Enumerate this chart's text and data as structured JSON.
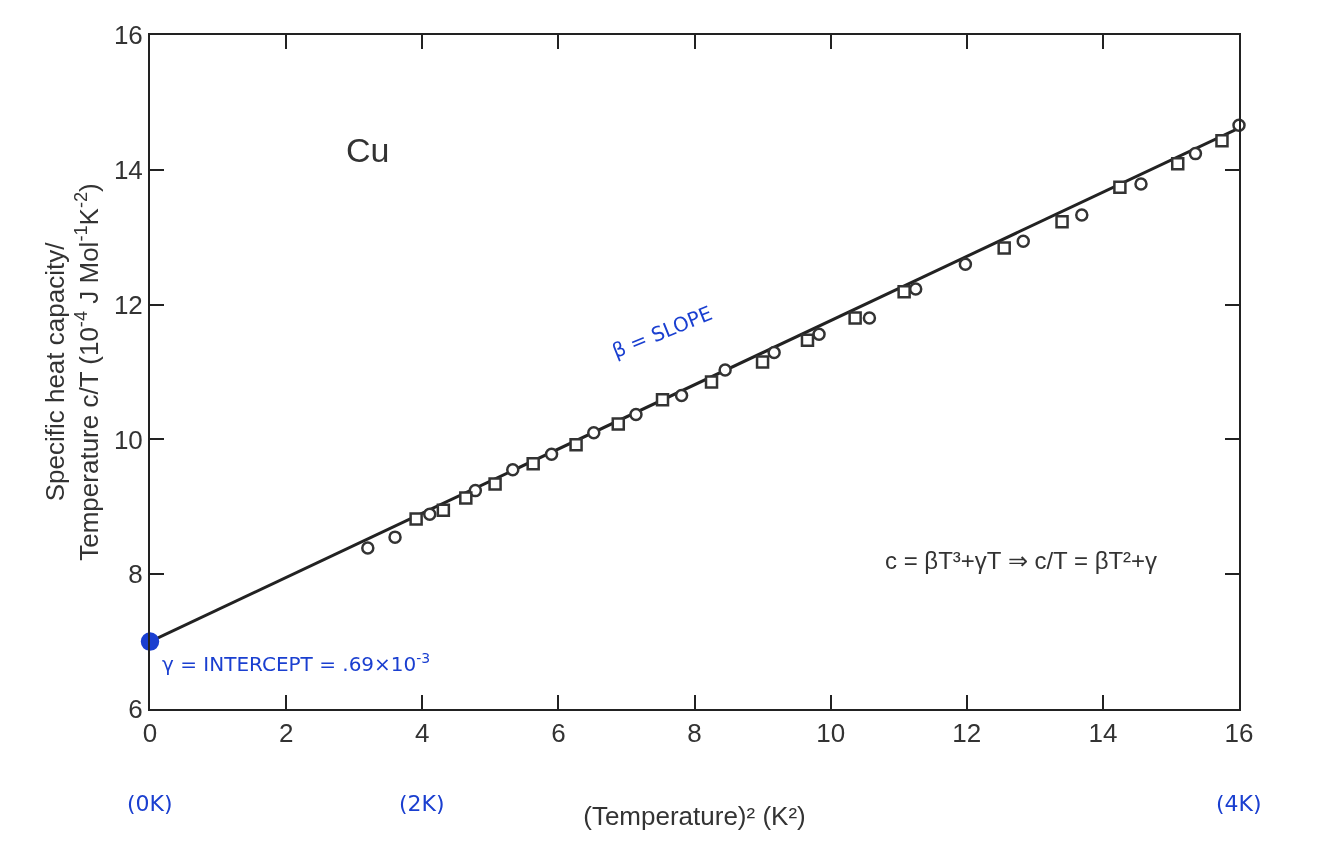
{
  "chart_data": {
    "type": "scatter",
    "xlabel": "(Temperature)² (K²)",
    "ylabel": "Specific heat capacity/\nTemperature c/T (10$^{-4}$ J Mol$^{-1}$K$^{-2}$)",
    "xlim": [
      0,
      16
    ],
    "xticks": [
      0,
      2,
      4,
      6,
      8,
      10,
      12,
      14,
      16
    ],
    "ylim": [
      6,
      16
    ],
    "yticks": [
      6,
      8,
      10,
      12,
      14,
      16
    ],
    "series": [
      {
        "type": "line",
        "color": "#222222",
        "marker": "none",
        "line_style": "solid",
        "x": [
          0,
          16
        ],
        "values": [
          7.0,
          14.62
        ]
      },
      {
        "color": "#333333",
        "marker": "circle",
        "x": [
          3.2,
          3.6,
          4.11,
          4.78,
          5.33,
          5.9,
          6.52,
          7.14,
          7.81,
          8.45,
          9.17,
          9.83,
          10.57,
          11.25,
          11.98,
          12.83,
          13.69,
          14.56,
          15.36,
          16.0
        ],
        "values": [
          8.39,
          8.55,
          8.89,
          9.24,
          9.55,
          9.78,
          10.1,
          10.37,
          10.65,
          11.03,
          11.29,
          11.56,
          11.8,
          12.23,
          12.6,
          12.94,
          13.33,
          13.79,
          14.24,
          14.66
        ]
      },
      {
        "color": "#333333",
        "marker": "square",
        "x": [
          3.91,
          4.31,
          4.64,
          5.07,
          5.63,
          6.26,
          6.88,
          7.53,
          8.25,
          9.0,
          9.66,
          10.36,
          11.08,
          12.55,
          13.4,
          14.25,
          15.1,
          15.75
        ],
        "values": [
          8.82,
          8.95,
          9.13,
          9.34,
          9.64,
          9.92,
          10.23,
          10.59,
          10.85,
          11.15,
          11.47,
          11.8,
          12.19,
          12.84,
          13.23,
          13.74,
          14.09,
          14.43
        ]
      },
      {
        "color": "#1a3fd0",
        "marker": "circle",
        "x": [
          0
        ],
        "values": [
          7.0
        ]
      }
    ],
    "annotations": [
      "Cu",
      "β = SLOPE",
      {
        "text": "γ = INTERCEPT = .69×10$^{-3}$",
        "x": 0,
        "y": 7.0
      },
      "c = βT³+γT ⇒ c/T = βT²+γ",
      "(0K)",
      "(2K)",
      "(4K)"
    ]
  }
}
